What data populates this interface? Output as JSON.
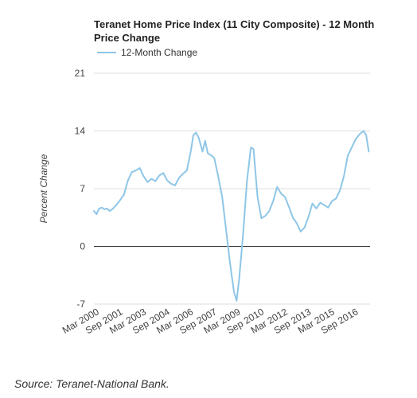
{
  "chart_data": {
    "type": "line",
    "title_line1": "Teranet Home Price Index (11 City Composite) - 12 Month",
    "title_line2": "Price Change",
    "ylabel": "Percent Change",
    "xlabel": "",
    "ylim": [
      -7,
      21
    ],
    "yticks": [
      -7,
      0,
      7,
      14,
      21
    ],
    "grid": true,
    "legend_position": "top-left",
    "xlim": [
      "2000-01",
      "2017-08"
    ],
    "xticks": [
      "Mar 2000",
      "Sep 2001",
      "Mar 2003",
      "Sep 2004",
      "Mar 2006",
      "Sep 2007",
      "Mar 2009",
      "Sep 2010",
      "Mar 2012",
      "Sep 2013",
      "Mar 2015",
      "Sep 2016"
    ],
    "xtick_dates": [
      "2000-03",
      "2001-09",
      "2003-03",
      "2004-09",
      "2006-03",
      "2007-09",
      "2009-03",
      "2010-09",
      "2012-03",
      "2013-09",
      "2015-03",
      "2016-09"
    ],
    "series": [
      {
        "name": "12-Month Change",
        "color": "#8ec6e6",
        "points": [
          [
            "2000-01",
            4.3
          ],
          [
            "2000-03",
            3.9
          ],
          [
            "2000-05",
            4.6
          ],
          [
            "2000-07",
            4.7
          ],
          [
            "2000-09",
            4.5
          ],
          [
            "2000-11",
            4.6
          ],
          [
            "2001-01",
            4.3
          ],
          [
            "2001-03",
            4.5
          ],
          [
            "2001-06",
            5.0
          ],
          [
            "2001-09",
            5.6
          ],
          [
            "2001-12",
            6.3
          ],
          [
            "2002-03",
            8.0
          ],
          [
            "2002-06",
            9.0
          ],
          [
            "2002-09",
            9.2
          ],
          [
            "2002-12",
            9.5
          ],
          [
            "2003-03",
            8.5
          ],
          [
            "2003-06",
            7.8
          ],
          [
            "2003-09",
            8.2
          ],
          [
            "2003-12",
            7.9
          ],
          [
            "2004-03",
            8.6
          ],
          [
            "2004-06",
            8.9
          ],
          [
            "2004-09",
            8.0
          ],
          [
            "2004-12",
            7.6
          ],
          [
            "2005-03",
            7.4
          ],
          [
            "2005-06",
            8.3
          ],
          [
            "2005-09",
            8.8
          ],
          [
            "2005-12",
            9.2
          ],
          [
            "2006-03",
            11.5
          ],
          [
            "2006-05",
            13.5
          ],
          [
            "2006-07",
            13.8
          ],
          [
            "2006-09",
            13.2
          ],
          [
            "2006-12",
            11.5
          ],
          [
            "2007-02",
            12.8
          ],
          [
            "2007-04",
            11.3
          ],
          [
            "2007-07",
            11.0
          ],
          [
            "2007-09",
            10.7
          ],
          [
            "2007-12",
            8.5
          ],
          [
            "2008-03",
            6.0
          ],
          [
            "2008-06",
            2.0
          ],
          [
            "2008-09",
            -2.0
          ],
          [
            "2008-12",
            -5.5
          ],
          [
            "2009-02",
            -6.6
          ],
          [
            "2009-04",
            -4.0
          ],
          [
            "2009-07",
            1.5
          ],
          [
            "2009-10",
            8.0
          ],
          [
            "2010-01",
            12.0
          ],
          [
            "2010-03",
            11.8
          ],
          [
            "2010-06",
            6.0
          ],
          [
            "2010-09",
            3.4
          ],
          [
            "2010-12",
            3.7
          ],
          [
            "2011-03",
            4.3
          ],
          [
            "2011-06",
            5.5
          ],
          [
            "2011-09",
            7.2
          ],
          [
            "2011-12",
            6.4
          ],
          [
            "2012-03",
            6.0
          ],
          [
            "2012-06",
            4.8
          ],
          [
            "2012-09",
            3.5
          ],
          [
            "2012-12",
            2.8
          ],
          [
            "2013-03",
            1.8
          ],
          [
            "2013-06",
            2.3
          ],
          [
            "2013-09",
            3.6
          ],
          [
            "2013-12",
            5.2
          ],
          [
            "2014-03",
            4.6
          ],
          [
            "2014-06",
            5.3
          ],
          [
            "2014-09",
            5.0
          ],
          [
            "2014-12",
            4.7
          ],
          [
            "2015-03",
            5.5
          ],
          [
            "2015-06",
            5.8
          ],
          [
            "2015-09",
            6.8
          ],
          [
            "2015-12",
            8.5
          ],
          [
            "2016-03",
            11.0
          ],
          [
            "2016-06",
            12.0
          ],
          [
            "2016-09",
            13.0
          ],
          [
            "2016-12",
            13.6
          ],
          [
            "2017-03",
            14.0
          ],
          [
            "2017-05",
            13.5
          ],
          [
            "2017-07",
            11.5
          ]
        ]
      }
    ]
  },
  "source_text": "Source: Teranet-National Bank."
}
